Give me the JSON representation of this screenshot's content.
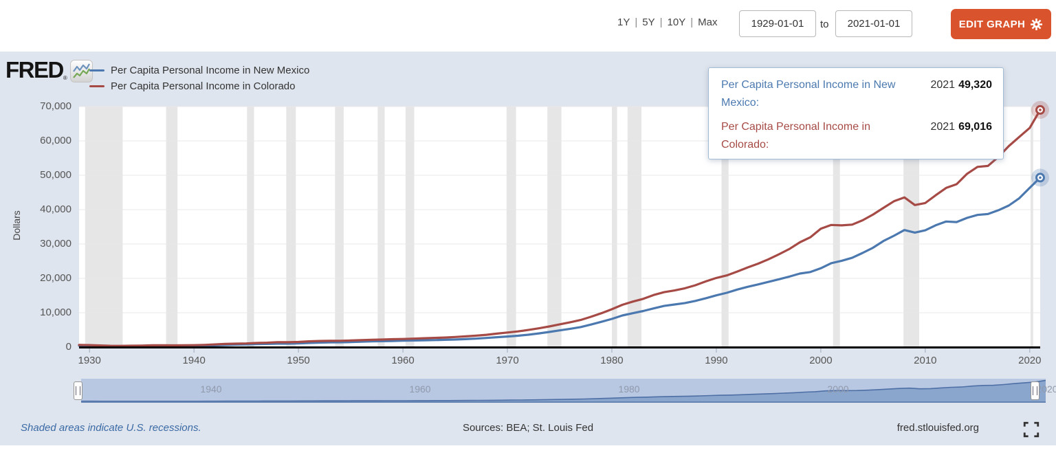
{
  "toolbar": {
    "ranges": [
      "1Y",
      "5Y",
      "10Y",
      "Max"
    ],
    "separator": "|",
    "date_from": "1929-01-01",
    "to_label": "to",
    "date_to": "2021-01-01",
    "edit_graph_label": "EDIT GRAPH"
  },
  "branding": {
    "logo_text": "FRED",
    "registered_mark": "®"
  },
  "tooltip": {
    "rows": [
      {
        "label": "Per Capita Personal Income in New Mexico:",
        "year": "2021",
        "value": "49,320",
        "color": "#4b79af"
      },
      {
        "label": "Per Capita Personal Income in Colorado:",
        "year": "2021",
        "value": "69,016",
        "color": "#a64a46"
      }
    ]
  },
  "chart_data": {
    "type": "line",
    "title": "",
    "ylabel": "Dollars",
    "xlabel": "",
    "ylim": [
      0,
      70000
    ],
    "x_range": [
      1929,
      2021
    ],
    "grid": "horizontal",
    "legend_position": "top-left",
    "yticks": [
      {
        "value": 0,
        "label": "0"
      },
      {
        "value": 10000,
        "label": "10,000"
      },
      {
        "value": 20000,
        "label": "20,000"
      },
      {
        "value": 30000,
        "label": "30,000"
      },
      {
        "value": 40000,
        "label": "40,000"
      },
      {
        "value": 50000,
        "label": "50,000"
      },
      {
        "value": 60000,
        "label": "60,000"
      },
      {
        "value": 70000,
        "label": "70,000"
      }
    ],
    "xticks": [
      1930,
      1940,
      1950,
      1960,
      1970,
      1980,
      1990,
      2000,
      2010,
      2020
    ],
    "years": [
      1929,
      1930,
      1931,
      1932,
      1933,
      1934,
      1935,
      1936,
      1937,
      1938,
      1939,
      1940,
      1941,
      1942,
      1943,
      1944,
      1945,
      1946,
      1947,
      1948,
      1949,
      1950,
      1951,
      1952,
      1953,
      1954,
      1955,
      1956,
      1957,
      1958,
      1959,
      1960,
      1961,
      1962,
      1963,
      1964,
      1965,
      1966,
      1967,
      1968,
      1969,
      1970,
      1971,
      1972,
      1973,
      1974,
      1975,
      1976,
      1977,
      1978,
      1979,
      1980,
      1981,
      1982,
      1983,
      1984,
      1985,
      1986,
      1987,
      1988,
      1989,
      1990,
      1991,
      1992,
      1993,
      1994,
      1995,
      1996,
      1997,
      1998,
      1999,
      2000,
      2001,
      2002,
      2003,
      2004,
      2005,
      2006,
      2007,
      2008,
      2009,
      2010,
      2011,
      2012,
      2013,
      2014,
      2015,
      2016,
      2017,
      2018,
      2019,
      2020,
      2021
    ],
    "series": [
      {
        "name": "Per Capita Personal Income in New Mexico",
        "color": "#4b79af",
        "values": [
          410,
          372,
          330,
          263,
          262,
          300,
          320,
          355,
          373,
          357,
          364,
          383,
          436,
          527,
          627,
          714,
          770,
          858,
          929,
          1003,
          996,
          1085,
          1204,
          1298,
          1356,
          1395,
          1465,
          1563,
          1651,
          1715,
          1786,
          1854,
          1924,
          1984,
          2041,
          2115,
          2209,
          2327,
          2459,
          2651,
          2873,
          3077,
          3301,
          3595,
          3970,
          4405,
          4858,
          5328,
          5823,
          6553,
          7352,
          8209,
          9195,
          9851,
          10494,
          11266,
          11976,
          12406,
          12822,
          13438,
          14228,
          15063,
          15793,
          16744,
          17531,
          18244,
          18984,
          19735,
          20511,
          21402,
          21836,
          22935,
          24429,
          25110,
          25979,
          27396,
          28921,
          30877,
          32396,
          34067,
          33316,
          33986,
          35447,
          36536,
          36372,
          37590,
          38457,
          38721,
          39811,
          41198,
          43326,
          46338,
          49320
        ]
      },
      {
        "name": "Per Capita Personal Income in Colorado",
        "color": "#a64a46",
        "values": [
          634,
          571,
          484,
          375,
          353,
          401,
          448,
          520,
          539,
          503,
          531,
          557,
          644,
          774,
          918,
          1004,
          1059,
          1191,
          1288,
          1433,
          1415,
          1505,
          1679,
          1784,
          1830,
          1840,
          1922,
          2024,
          2113,
          2201,
          2291,
          2368,
          2458,
          2587,
          2671,
          2774,
          2937,
          3130,
          3310,
          3584,
          3917,
          4247,
          4568,
          4987,
          5465,
          6006,
          6610,
          7216,
          7871,
          8823,
          9865,
          11015,
          12302,
          13244,
          14047,
          15162,
          15975,
          16475,
          17117,
          18007,
          19113,
          20124,
          20858,
          21979,
          23178,
          24289,
          25570,
          27015,
          28559,
          30500,
          31951,
          34446,
          35540,
          35414,
          35648,
          36903,
          38578,
          40520,
          42449,
          43554,
          41340,
          41928,
          44179,
          46315,
          47404,
          50410,
          52444,
          52726,
          55335,
          58504,
          61157,
          63776,
          69016
        ]
      }
    ],
    "recessions": [
      [
        1929.58,
        1933.17
      ],
      [
        1937.33,
        1938.42
      ],
      [
        1945.08,
        1945.75
      ],
      [
        1948.83,
        1949.75
      ],
      [
        1953.5,
        1954.33
      ],
      [
        1957.58,
        1958.25
      ],
      [
        1960.25,
        1961.08
      ],
      [
        1969.92,
        1970.83
      ],
      [
        1973.83,
        1975.17
      ],
      [
        1980.0,
        1980.5
      ],
      [
        1981.5,
        1982.83
      ],
      [
        1990.5,
        1991.17
      ],
      [
        2001.17,
        2001.83
      ],
      [
        2007.92,
        2009.42
      ],
      [
        2020.08,
        2020.33
      ]
    ]
  },
  "slider": {
    "labels": [
      "1940",
      "1960",
      "1980",
      "2000",
      "2020"
    ]
  },
  "footer": {
    "recession_note": "Shaded areas indicate U.S. recessions.",
    "sources": "Sources: BEA; St. Louis Fed",
    "site": "fred.stlouisfed.org"
  },
  "colors": {
    "background": "#dfe5ee",
    "plot_background": "#ffffff",
    "recession_band": "#e6e6e6",
    "gridline": "#e8e8e8",
    "axis_line": "#000000",
    "button": "#d9542c",
    "slider_band": "#b9c8e2",
    "slider_area": "#8ba6cd"
  }
}
